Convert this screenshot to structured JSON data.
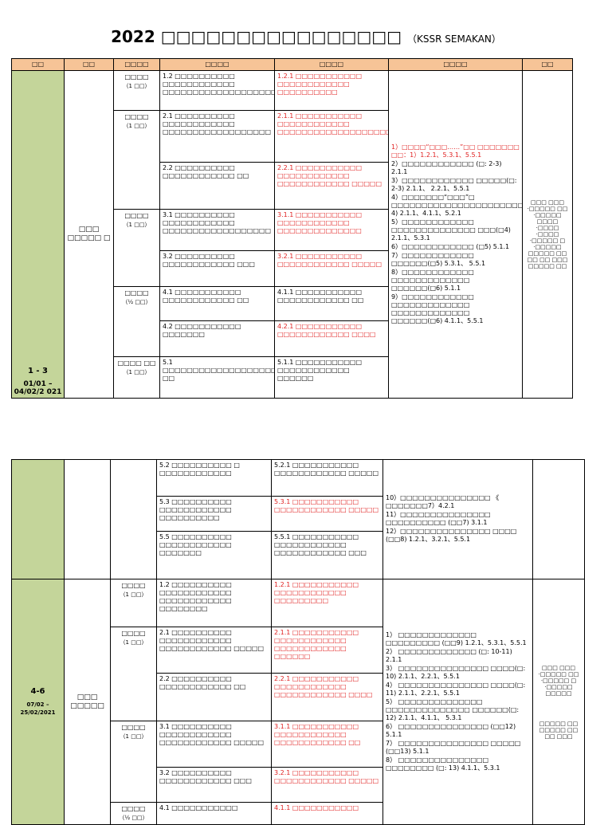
{
  "title": {
    "year": "2022",
    "main": "□□□□□□□□□□□□□□□□",
    "sub": "（KSSR SEMAKAN）"
  },
  "header": [
    "□□",
    "□□",
    "□□□□",
    "□□□□",
    "□□□□",
    "□□□□",
    "□□"
  ],
  "table1": {
    "week": "1 - 3",
    "dates": "01/01 – 04/02/2 021",
    "theme": "□□□ □□□□□ □",
    "rows": [
      {
        "skill": "□□□□",
        "dur": "（1 □□）",
        "std": "1.2 □□□□□□□□□□ □□□□□□□□□□□□ □□□□□□□□□□□□□□□□□□□□",
        "learn": "1.2.1 □□□□□□□□□□□ □□□□□□□□□□□□ □□□□□□□□□□",
        "red": true
      },
      {
        "skill": "□□□□",
        "dur": "（1 □□）",
        "std": "2.1 □□□□□□□□□□ □□□□□□□□□□□□ □□□□□□□□□□□□□□□□□□",
        "learn": "2.1.1 □□□□□□□□□□□ □□□□□□□□□□□□ □□□□□□□□□□□□□□□□□□□□",
        "red": true
      },
      {
        "std": "2.2 □□□□□□□□□□ □□□□□□□□□□□□ □□",
        "learn": "2.2.1 □□□□□□□□□□□ □□□□□□□□□□□□ □□□□□□□□□□□□ □□□□□",
        "red": true
      },
      {
        "skill": "□□□□",
        "dur": "（1 □□）",
        "std": "3.1 □□□□□□□□□□ □□□□□□□□□□□□ □□□□□□□□□□□□□□□□□□",
        "learn": "3.1.1 □□□□□□□□□□□ □□□□□□□□□□□□ □□□□□□□□□□□□□□",
        "red": true
      },
      {
        "std": "3.2 □□□□□□□□□□ □□□□□□□□□□□□ □□□",
        "learn": "3.2.1 □□□□□□□□□□□ □□□□□□□□□□□□ □□□□□",
        "red": true
      },
      {
        "skill": "□□□□",
        "dur": "（½ □□）",
        "std": "4.1 □□□□□□□□□□□ □□□□□□□□□□□□ □□",
        "learn": "4.1.1 □□□□□□□□□□□ □□□□□□□□□□□□ □□",
        "red": false
      },
      {
        "std": "4.2 □□□□□□□□□□□ □□□□□□□",
        "learn": "4.2.1 □□□□□□□□□□□ □□□□□□□□□□□□ □□□□",
        "red": true
      },
      {
        "skill": "□□□□ □□",
        "dur": "（1 □□）",
        "std": "5.1 □□□□□□□□□□□□□□□□□□□□□ □□",
        "learn": "5.1.1 □□□□□□□□□□□ □□□□□□□□□□□□ □□□□□□",
        "red": false
      }
    ],
    "activities": [
      "1）□□□□“□□□……”□□ □□□□□□□ □□：1）1.2.1、5.3.1、5.5.1",
      "2）□□□□□□□□□□□□ (□: 2-3) 2.1.1",
      "3）□□□□□□□□□□□□ □□□□□(□: 2-3) 2.1.1、 2.2.1、5.5.1",
      "4）□□□□□□□“□□□”□ □□□□□□□□□□□□□□□□□□□□□□□□□□□□□□□□□□□□□□□□□□□(□ 4) 2.1.1、4.1.1、5.2.1",
      "5）□□□□□□□□□□□□ □□□□□□□□□□□□□□ □□□(□4) 2.1.1、5.3.1",
      "6）□□□□□□□□□□□□ (□5) 5.1.1",
      "7）□□□□□□□□□□□□ □□□□□□(□5) 5.3.1、 5.5.1",
      "8）□□□□□□□□□□□□ □□□□□□□□□□□□□ □□□□□□(□6) 5.1.1",
      "9）□□□□□□□□□□□□ □□□□□□□□□□□□□ □□□□□□□□□□□□□ □□□□□□(□6) 4.1.1、5.5.1"
    ],
    "notes": "□□□ □□□ ·□□□□□ □□ ·□□□□□ □□□□ ·□□□□ ·□□□□ ·□□□□□ □ ·□□□□□ □□□□□ □□ □□ □□ □□□ □□□□□ □□"
  },
  "table2": {
    "cont_rows": [
      {
        "std": "5.2 □□□□□□□□□□ □ □□□□□□□□□□□□",
        "learn": "5.2.1 □□□□□□□□□□□ □□□□□□□□□□□□ □□□□□",
        "red": false
      },
      {
        "std": "5.3 □□□□□□□□□□ □□□□□□□□□□□□ □□□□□□□□□□",
        "learn": "5.3.1 □□□□□□□□□□□ □□□□□□□□□□□□ □□□□□",
        "red": true
      },
      {
        "std": "5.5 □□□□□□□□□□ □□□□□□□□□□□□ □□□□□□□",
        "learn": "5.5.1 □□□□□□□□□□□ □□□□□□□□□□□□ □□□□□□□□□□□□ □□□",
        "red": false
      }
    ],
    "cont_activities": [
      "10）□□□□□□□□□□□□□□□ 《 □□□□□□□7）4.2.1",
      "11）□□□□□□□□□□□□□□□ □□□□□□□□□□ (□□7) 3.1.1",
      "12）□□□□□□□□□□□□□□□ □□□□ (□□8) 1.2.1、3.2.1、5.5.1"
    ],
    "week": "4-6",
    "dates": "07/02 – 25/02/2021",
    "theme": "□□□ □□□□□",
    "rows": [
      {
        "skill": "□□□□",
        "dur": "（1 □□）",
        "std": "1.2 □□□□□□□□□□ □□□□□□□□□□□□ □□□□□□□□□□□□ □□□□□□□□",
        "learn": "1.2.1 □□□□□□□□□□□ □□□□□□□□□□□□ □□□□□□□□□",
        "red": true
      },
      {
        "skill": "□□□□",
        "dur": "（1 □□）",
        "std": "2.1 □□□□□□□□□□ □□□□□□□□□□□□ □□□□□□□□□□□□ □□□□□",
        "learn": "2.1.1 □□□□□□□□□□□ □□□□□□□□□□□□ □□□□□□□□□□□□ □□□□□□",
        "red": true
      },
      {
        "std": "2.2 □□□□□□□□□□ □□□□□□□□□□□□ □□",
        "learn": "2.2.1 □□□□□□□□□□□ □□□□□□□□□□□□ □□□□□□□□□□□□ □□□□",
        "red": true
      },
      {
        "skill": "□□□□",
        "dur": "（1 □□）",
        "std": "3.1 □□□□□□□□□□ □□□□□□□□□□□□ □□□□□□□□□□□□ □□□□□",
        "learn": "3.1.1 □□□□□□□□□□□ □□□□□□□□□□□□ □□□□□□□□□□□□ □□",
        "red": true
      },
      {
        "std": "3.2 □□□□□□□□□□ □□□□□□□□□□□□ □□□",
        "learn": "3.2.1 □□□□□□□□□□□ □□□□□□□□□□□□ □□□□□",
        "red": true
      },
      {
        "skill": "□□□□",
        "dur": "（½ □□）",
        "std": "4.1 □□□□□□□□□□□",
        "learn": "4.1.1 □□□□□□□□□□□",
        "red": true
      }
    ],
    "activities": [
      "1） □□□□□□□□□□□□□ □□□□□□□□□ (□□9) 1.2.1、5.3.1、5.5.1",
      "2） □□□□□□□□□□□□□ (□: 10-11) 2.1.1",
      "3） □□□□□□□□□□□□□□□ □□□□(□: 10) 2.1.1、2.2.1、5.5.1",
      "4） □□□□□□□□□□□□□□□ □□□□(□: 11) 2.1.1、2.2.1、5.5.1",
      "5） □□□□□□□□□□□□□□ □□□□□□□□□□□□□□ □□□□□□(□: 12) 2.1.1、4.1.1、 5.3.1",
      "6） □□□□□□□□□□□□□□□ (□□12) 5.1.1",
      "7） □□□□□□□□□□□□□□□ □□□□□ (□□13) 5.1.1",
      "8） □□□□□□□□□□□□□□□ □□□□□□□□ (□: 13) 4.1.1、5.3.1"
    ],
    "notes_a": "□□□ □□□ ·□□□□□ □□ ·□□□□□ □ ·□□□□□ □□□□□",
    "notes_b": "□□□□□ □□ □□□□□ □□ □□ □□□"
  }
}
